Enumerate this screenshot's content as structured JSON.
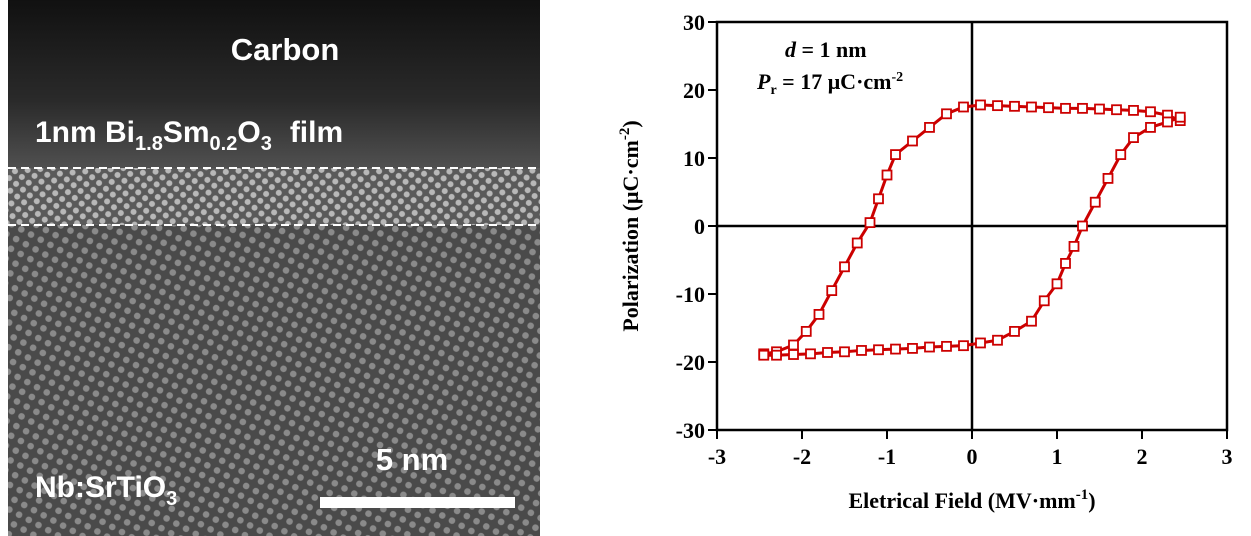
{
  "image_panel": {
    "top_label": "Carbon",
    "film_label": [
      "1nm Bi",
      "1.8",
      "Sm",
      "0.2",
      "O",
      "3",
      "film"
    ],
    "scale_bar": "5 nm",
    "substrate_label": [
      "Nb:SrTiO",
      "3"
    ]
  },
  "chart_data": {
    "type": "line",
    "annotations": [
      [
        "d",
        " = 1 nm"
      ],
      [
        "P",
        "r",
        " = 17 μC·cm",
        "-2"
      ]
    ],
    "xlabel": [
      "Eletrical Field (MV·mm",
      "-1",
      ")"
    ],
    "ylabel": [
      "Polarization (μC·cm",
      "-2",
      ")"
    ],
    "xlim": [
      -3,
      3
    ],
    "xticks": [
      -3,
      -2,
      -1,
      0,
      1,
      2,
      3
    ],
    "ylim": [
      -30,
      30
    ],
    "yticks": [
      -30,
      -20,
      -10,
      0,
      10,
      20,
      30
    ],
    "zero_lines": true,
    "marker": "hollow-square",
    "series": [
      {
        "color": "#cc0000",
        "x": [
          2.45,
          2.3,
          2.1,
          1.9,
          1.7,
          1.5,
          1.3,
          1.1,
          0.9,
          0.7,
          0.5,
          0.3,
          0.1,
          -0.1,
          -0.3,
          -0.5,
          -0.7,
          -0.9,
          -1.0,
          -1.1,
          -1.2,
          -1.35,
          -1.5,
          -1.65,
          -1.8,
          -1.95,
          -2.1,
          -2.3,
          -2.45
        ],
        "values": [
          15.5,
          16.3,
          16.8,
          17.0,
          17.1,
          17.2,
          17.3,
          17.3,
          17.4,
          17.5,
          17.6,
          17.7,
          17.8,
          17.5,
          16.5,
          14.5,
          12.5,
          10.5,
          7.5,
          4.0,
          0.5,
          -2.5,
          -6,
          -9.5,
          -13,
          -15.5,
          -17.5,
          -18.5,
          -18.8
        ]
      },
      {
        "color": "#cc0000",
        "x": [
          -2.45,
          -2.3,
          -2.1,
          -1.9,
          -1.7,
          -1.5,
          -1.3,
          -1.1,
          -0.9,
          -0.7,
          -0.5,
          -0.3,
          -0.1,
          0.1,
          0.3,
          0.5,
          0.7,
          0.85,
          1.0,
          1.1,
          1.2,
          1.3,
          1.45,
          1.6,
          1.75,
          1.9,
          2.1,
          2.3,
          2.45
        ],
        "values": [
          -19,
          -19,
          -18.9,
          -18.8,
          -18.6,
          -18.5,
          -18.3,
          -18.2,
          -18.1,
          -18,
          -17.8,
          -17.7,
          -17.6,
          -17.2,
          -16.8,
          -15.5,
          -14,
          -11,
          -8.5,
          -5.5,
          -3,
          0,
          3.5,
          7,
          10.5,
          13,
          14.5,
          15.3,
          16
        ]
      }
    ]
  }
}
